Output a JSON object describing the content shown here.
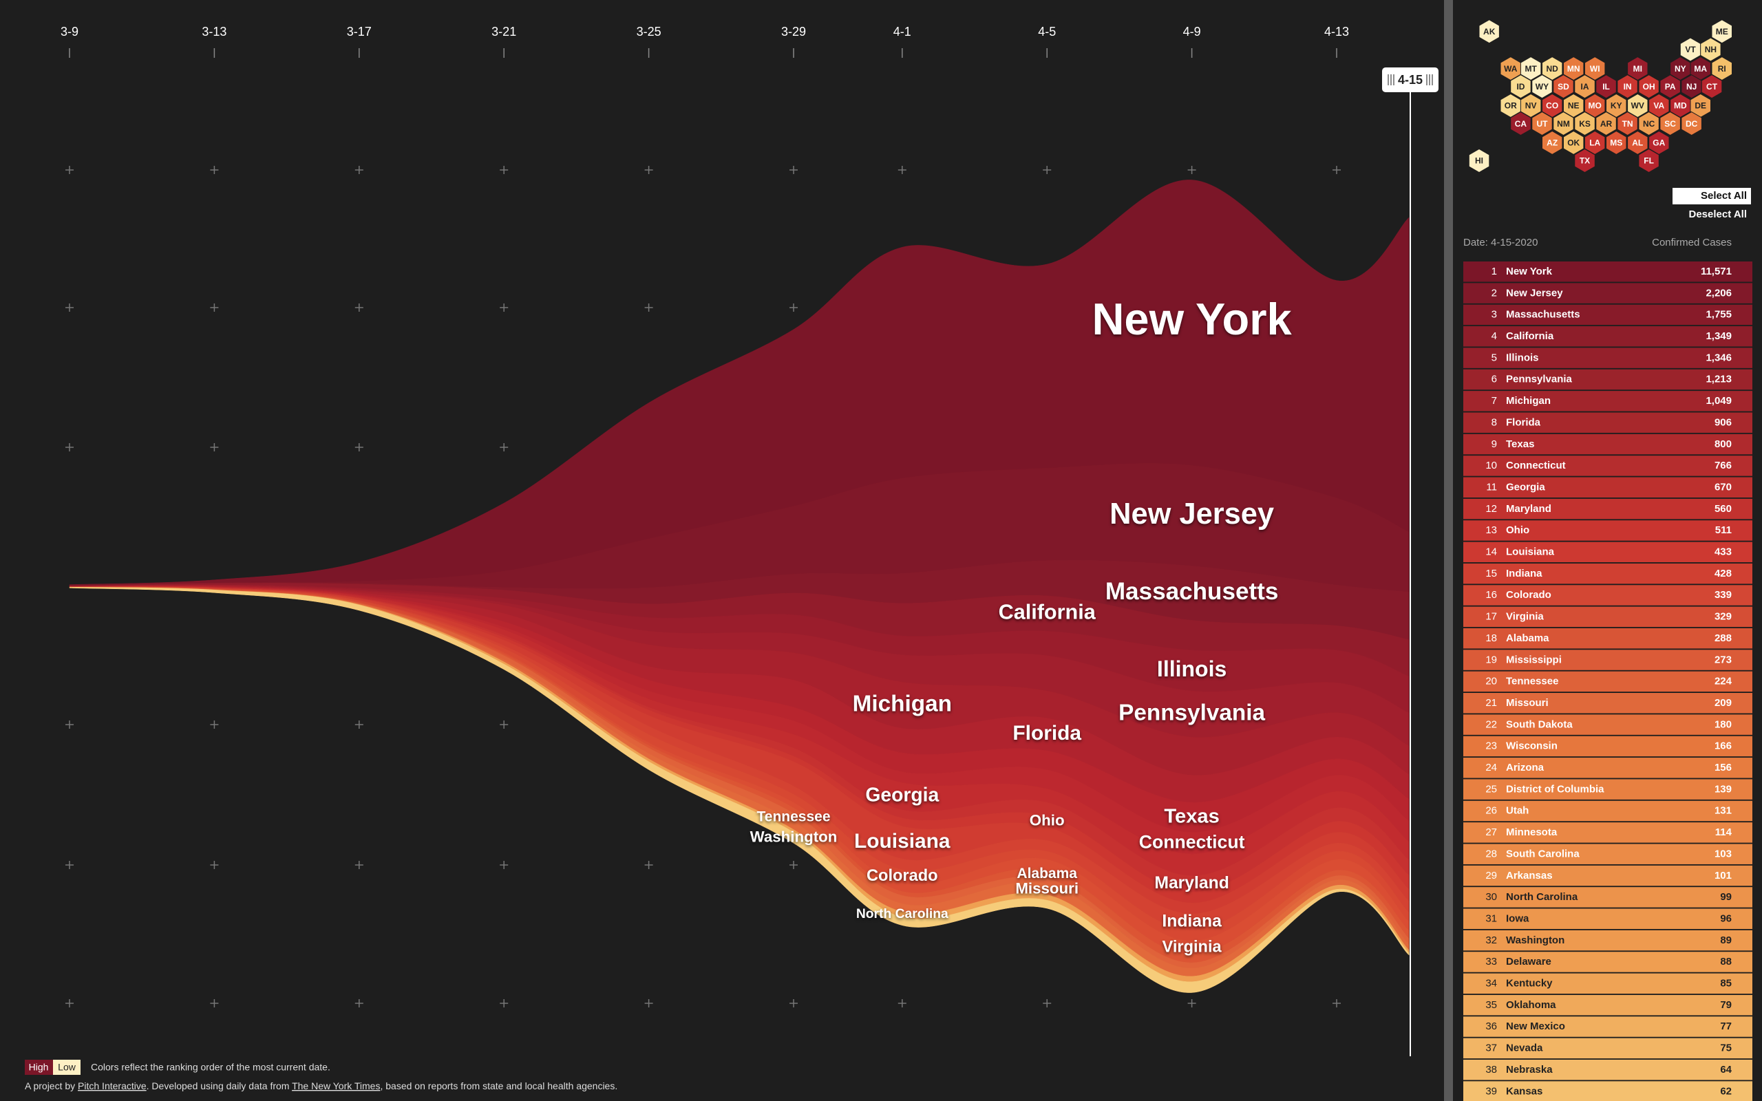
{
  "chart_data": {
    "type": "streamgraph",
    "x": [
      "3-9",
      "3-13",
      "3-17",
      "3-21",
      "3-25",
      "3-29",
      "4-1",
      "4-5",
      "4-9",
      "4-13",
      "4-15"
    ],
    "xticks": [
      "3-9",
      "3-13",
      "3-17",
      "3-21",
      "3-25",
      "3-29",
      "4-1",
      "4-5",
      "4-9",
      "4-13"
    ],
    "series": [
      {
        "name": "New York",
        "color": "#7b1628",
        "values": [
          40,
          100,
          700,
          2500,
          5000,
          6500,
          8500,
          7500,
          10500,
          8000,
          11571
        ]
      },
      {
        "name": "New Jersey",
        "color": "#801829",
        "values": [
          5,
          20,
          80,
          600,
          1800,
          2500,
          3500,
          3400,
          3700,
          3200,
          2206
        ]
      },
      {
        "name": "Massachusetts",
        "color": "#861a2a",
        "values": [
          1,
          10,
          30,
          100,
          600,
          700,
          1100,
          1300,
          2000,
          1500,
          1755
        ]
      },
      {
        "name": "California",
        "color": "#921c2b",
        "values": [
          20,
          50,
          150,
          300,
          500,
          800,
          1200,
          1300,
          1100,
          900,
          1349
        ]
      },
      {
        "name": "Illinois",
        "color": "#9a1d2c",
        "values": [
          1,
          10,
          60,
          160,
          500,
          700,
          700,
          900,
          1500,
          1200,
          1346
        ]
      },
      {
        "name": "Pennsylvania",
        "color": "#a11f2d",
        "values": [
          1,
          20,
          50,
          100,
          500,
          700,
          1000,
          1300,
          1700,
          1100,
          1213
        ]
      },
      {
        "name": "Michigan",
        "color": "#a8212d",
        "values": [
          0,
          20,
          60,
          300,
          800,
          1000,
          1700,
          1000,
          1400,
          900,
          1049
        ]
      },
      {
        "name": "Florida",
        "color": "#b0232e",
        "values": [
          5,
          20,
          60,
          300,
          500,
          1000,
          900,
          1200,
          1000,
          800,
          906
        ]
      },
      {
        "name": "Texas",
        "color": "#b8252e",
        "values": [
          5,
          15,
          30,
          200,
          400,
          500,
          700,
          700,
          1100,
          600,
          800
        ]
      },
      {
        "name": "Connecticut",
        "color": "#bd282f",
        "values": [
          1,
          5,
          30,
          100,
          300,
          500,
          400,
          700,
          800,
          600,
          766
        ]
      },
      {
        "name": "Georgia",
        "color": "#c22c2f",
        "values": [
          2,
          20,
          50,
          200,
          300,
          500,
          1000,
          500,
          800,
          600,
          670
        ]
      },
      {
        "name": "Maryland",
        "color": "#c63130",
        "values": [
          2,
          5,
          20,
          80,
          100,
          300,
          300,
          500,
          600,
          500,
          560
        ]
      },
      {
        "name": "Ohio",
        "color": "#cc3630",
        "values": [
          2,
          10,
          20,
          100,
          200,
          200,
          300,
          400,
          400,
          400,
          511
        ]
      },
      {
        "name": "Louisiana",
        "color": "#d03c31",
        "values": [
          1,
          10,
          60,
          200,
          400,
          900,
          1200,
          500,
          400,
          400,
          433
        ]
      },
      {
        "name": "Indiana",
        "color": "#d44232",
        "values": [
          1,
          5,
          20,
          100,
          300,
          300,
          400,
          400,
          600,
          300,
          428
        ]
      },
      {
        "name": "Colorado",
        "color": "#d74832",
        "values": [
          3,
          20,
          50,
          150,
          300,
          300,
          500,
          300,
          400,
          300,
          339
        ]
      },
      {
        "name": "Virginia",
        "color": "#da4d33",
        "values": [
          1,
          10,
          20,
          60,
          100,
          200,
          300,
          400,
          500,
          400,
          329
        ]
      },
      {
        "name": "Alabama",
        "color": "#dc5534",
        "values": [
          0,
          5,
          20,
          60,
          100,
          200,
          150,
          300,
          300,
          200,
          288
        ]
      },
      {
        "name": "Tennessee",
        "color": "#e0623a",
        "values": [
          1,
          10,
          40,
          150,
          200,
          300,
          300,
          200,
          200,
          150,
          224
        ]
      },
      {
        "name": "Missouri",
        "color": "#e2693b",
        "values": [
          0,
          2,
          5,
          80,
          200,
          300,
          300,
          400,
          300,
          200,
          209
        ]
      },
      {
        "name": "North Carolina",
        "color": "#efa052",
        "values": [
          1,
          5,
          20,
          80,
          100,
          100,
          200,
          200,
          200,
          150,
          99
        ]
      },
      {
        "name": "Washington",
        "color": "#f6cc7a",
        "values": [
          30,
          100,
          200,
          200,
          300,
          400,
          300,
          300,
          400,
          100,
          89
        ]
      }
    ]
  },
  "legend": {
    "high": "High",
    "low": "Low",
    "high_color": "#7b1628",
    "low_color": "#fdf0c4",
    "note": "Colors reflect the ranking order of the most current date."
  },
  "footer": {
    "prefix": "A project by ",
    "credit": "Pitch Interactive",
    "middle": ". Developed using daily data from ",
    "source": "The New York Times",
    "suffix": ", based on reports from state and local health agencies."
  },
  "hex_map": [
    {
      "label": "AK",
      "color": "#fdf0c4"
    },
    {
      "label": "ME",
      "color": "#fdf0c4"
    },
    {
      "label": "VT",
      "color": "#fdf0c4"
    },
    {
      "label": "NH",
      "color": "#f9dc92"
    },
    {
      "label": "WA",
      "color": "#efa052"
    },
    {
      "label": "MT",
      "color": "#fdf0c4"
    },
    {
      "label": "ND",
      "color": "#f9dc92"
    },
    {
      "label": "MN",
      "color": "#e77a3e"
    },
    {
      "label": "WI",
      "color": "#e77a3e"
    },
    {
      "label": "MI",
      "color": "#9a1d2c"
    },
    {
      "label": "NY",
      "color": "#7b1628"
    },
    {
      "label": "MA",
      "color": "#7b1628"
    },
    {
      "label": "RI",
      "color": "#f4c06a"
    },
    {
      "label": "ID",
      "color": "#f9dc92"
    },
    {
      "label": "WY",
      "color": "#fdf0c4"
    },
    {
      "label": "SD",
      "color": "#dc5534"
    },
    {
      "label": "IA",
      "color": "#efa052"
    },
    {
      "label": "IL",
      "color": "#9a1d2c"
    },
    {
      "label": "IN",
      "color": "#cc3630"
    },
    {
      "label": "OH",
      "color": "#cc3630"
    },
    {
      "label": "PA",
      "color": "#9a1d2c"
    },
    {
      "label": "NJ",
      "color": "#7b1628"
    },
    {
      "label": "CT",
      "color": "#b8252e"
    },
    {
      "label": "OR",
      "color": "#f9dc92"
    },
    {
      "label": "NV",
      "color": "#f4c06a"
    },
    {
      "label": "CO",
      "color": "#cc3630"
    },
    {
      "label": "NE",
      "color": "#f4c06a"
    },
    {
      "label": "MO",
      "color": "#dc5534"
    },
    {
      "label": "KY",
      "color": "#efa052"
    },
    {
      "label": "WV",
      "color": "#f9dc92"
    },
    {
      "label": "VA",
      "color": "#cc3630"
    },
    {
      "label": "MD",
      "color": "#b8252e"
    },
    {
      "label": "DE",
      "color": "#efa052"
    },
    {
      "label": "CA",
      "color": "#9a1d2c"
    },
    {
      "label": "UT",
      "color": "#e77a3e"
    },
    {
      "label": "NM",
      "color": "#f4c06a"
    },
    {
      "label": "KS",
      "color": "#f4c06a"
    },
    {
      "label": "AR",
      "color": "#efa052"
    },
    {
      "label": "TN",
      "color": "#dc5534"
    },
    {
      "label": "NC",
      "color": "#efa052"
    },
    {
      "label": "SC",
      "color": "#e77a3e"
    },
    {
      "label": "DC",
      "color": "#e77a3e"
    },
    {
      "label": "AZ",
      "color": "#e77a3e"
    },
    {
      "label": "OK",
      "color": "#f4c06a"
    },
    {
      "label": "LA",
      "color": "#cc3630"
    },
    {
      "label": "MS",
      "color": "#dc5534"
    },
    {
      "label": "AL",
      "color": "#dc5534"
    },
    {
      "label": "GA",
      "color": "#b8252e"
    },
    {
      "label": "HI",
      "color": "#fdf0c4"
    },
    {
      "label": "TX",
      "color": "#b8252e"
    },
    {
      "label": "FL",
      "color": "#b8252e"
    }
  ],
  "buttons": {
    "select_all": "Select All",
    "deselect_all": "Deselect All"
  },
  "table": {
    "date": "Date: 4-15-2020",
    "column": "Confirmed Cases",
    "rows": [
      {
        "rank": 1,
        "state": "New York",
        "cases": "11,571"
      },
      {
        "rank": 2,
        "state": "New Jersey",
        "cases": "2,206"
      },
      {
        "rank": 3,
        "state": "Massachusetts",
        "cases": "1,755"
      },
      {
        "rank": 4,
        "state": "California",
        "cases": "1,349"
      },
      {
        "rank": 5,
        "state": "Illinois",
        "cases": "1,346"
      },
      {
        "rank": 6,
        "state": "Pennsylvania",
        "cases": "1,213"
      },
      {
        "rank": 7,
        "state": "Michigan",
        "cases": "1,049"
      },
      {
        "rank": 8,
        "state": "Florida",
        "cases": "906"
      },
      {
        "rank": 9,
        "state": "Texas",
        "cases": "800"
      },
      {
        "rank": 10,
        "state": "Connecticut",
        "cases": "766"
      },
      {
        "rank": 11,
        "state": "Georgia",
        "cases": "670"
      },
      {
        "rank": 12,
        "state": "Maryland",
        "cases": "560"
      },
      {
        "rank": 13,
        "state": "Ohio",
        "cases": "511"
      },
      {
        "rank": 14,
        "state": "Louisiana",
        "cases": "433"
      },
      {
        "rank": 15,
        "state": "Indiana",
        "cases": "428"
      },
      {
        "rank": 16,
        "state": "Colorado",
        "cases": "339"
      },
      {
        "rank": 17,
        "state": "Virginia",
        "cases": "329"
      },
      {
        "rank": 18,
        "state": "Alabama",
        "cases": "288"
      },
      {
        "rank": 19,
        "state": "Mississippi",
        "cases": "273"
      },
      {
        "rank": 20,
        "state": "Tennessee",
        "cases": "224"
      },
      {
        "rank": 21,
        "state": "Missouri",
        "cases": "209"
      },
      {
        "rank": 22,
        "state": "South Dakota",
        "cases": "180"
      },
      {
        "rank": 23,
        "state": "Wisconsin",
        "cases": "166"
      },
      {
        "rank": 24,
        "state": "Arizona",
        "cases": "156"
      },
      {
        "rank": 25,
        "state": "District of Columbia",
        "cases": "139"
      },
      {
        "rank": 26,
        "state": "Utah",
        "cases": "131"
      },
      {
        "rank": 27,
        "state": "Minnesota",
        "cases": "114"
      },
      {
        "rank": 28,
        "state": "South Carolina",
        "cases": "103"
      },
      {
        "rank": 29,
        "state": "Arkansas",
        "cases": "101"
      },
      {
        "rank": 30,
        "state": "North Carolina",
        "cases": "99"
      },
      {
        "rank": 31,
        "state": "Iowa",
        "cases": "96"
      },
      {
        "rank": 32,
        "state": "Washington",
        "cases": "89"
      },
      {
        "rank": 33,
        "state": "Delaware",
        "cases": "88"
      },
      {
        "rank": 34,
        "state": "Kentucky",
        "cases": "85"
      },
      {
        "rank": 35,
        "state": "Oklahoma",
        "cases": "79"
      },
      {
        "rank": 36,
        "state": "New Mexico",
        "cases": "77"
      },
      {
        "rank": 37,
        "state": "Nevada",
        "cases": "75"
      },
      {
        "rank": 38,
        "state": "Nebraska",
        "cases": "64"
      },
      {
        "rank": 39,
        "state": "Kansas",
        "cases": "62"
      }
    ]
  }
}
